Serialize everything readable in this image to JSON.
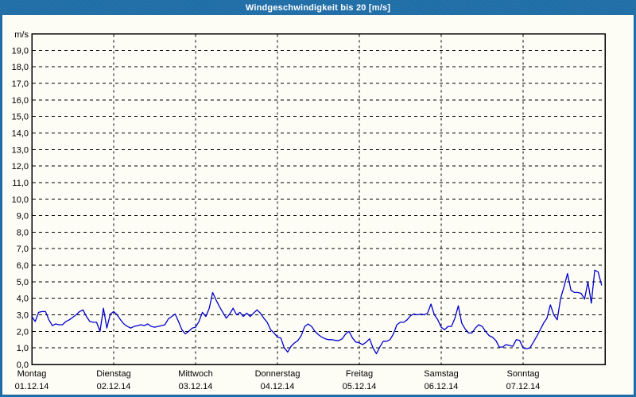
{
  "window": {
    "title": "Windgeschwindigkeit bis 20 [m/s]"
  },
  "chart_data": {
    "type": "line",
    "title": "Windgeschwindigkeit bis 20 [m/s]",
    "unit_label": "m/s",
    "ylim": [
      0,
      20
    ],
    "grid": true,
    "y_tick_labels": [
      "0,0",
      "1,0",
      "2,0",
      "3,0",
      "4,0",
      "5,0",
      "6,0",
      "7,0",
      "8,0",
      "9,0",
      "10,0",
      "11,0",
      "12,0",
      "13,0",
      "14,0",
      "15,0",
      "16,0",
      "17,0",
      "18,0",
      "19,0"
    ],
    "x_axis": {
      "days": [
        {
          "weekday": "Montag",
          "date": "01.12.14"
        },
        {
          "weekday": "Dienstag",
          "date": "02.12.14"
        },
        {
          "weekday": "Mittwoch",
          "date": "03.12.14"
        },
        {
          "weekday": "Donnerstag",
          "date": "04.12.14"
        },
        {
          "weekday": "Freitag",
          "date": "05.12.14"
        },
        {
          "weekday": "Samstag",
          "date": "06.12.14"
        },
        {
          "weekday": "Sonntag",
          "date": "07.12.14"
        }
      ],
      "points_per_day": 24
    },
    "series": [
      {
        "name": "Windgeschwindigkeit",
        "color": "#0000cc",
        "values": [
          2.9,
          2.6,
          3.15,
          3.2,
          3.2,
          2.7,
          2.35,
          2.45,
          2.4,
          2.4,
          2.6,
          2.7,
          2.85,
          3.0,
          3.2,
          3.3,
          2.9,
          2.6,
          2.55,
          2.55,
          2.0,
          3.4,
          2.2,
          3.05,
          3.2,
          3.0,
          2.7,
          2.45,
          2.3,
          2.2,
          2.3,
          2.35,
          2.4,
          2.35,
          2.45,
          2.3,
          2.25,
          2.3,
          2.35,
          2.4,
          2.75,
          2.9,
          3.05,
          2.6,
          2.1,
          1.85,
          2.0,
          2.2,
          2.25,
          2.6,
          3.15,
          2.9,
          3.4,
          4.35,
          3.9,
          3.5,
          3.15,
          2.8,
          3.05,
          3.4,
          3.0,
          3.15,
          2.9,
          3.1,
          2.9,
          3.1,
          3.3,
          3.1,
          2.8,
          2.55,
          2.1,
          1.9,
          1.65,
          1.6,
          1.0,
          0.75,
          1.1,
          1.3,
          1.45,
          1.75,
          2.3,
          2.45,
          2.3,
          2.0,
          1.8,
          1.65,
          1.55,
          1.5,
          1.5,
          1.45,
          1.45,
          1.55,
          1.85,
          2.0,
          1.6,
          1.35,
          1.3,
          1.2,
          1.35,
          1.55,
          1.0,
          0.65,
          1.05,
          1.4,
          1.4,
          1.5,
          1.85,
          2.4,
          2.55,
          2.55,
          2.7,
          2.95,
          3.05,
          3.0,
          3.05,
          3.0,
          3.1,
          3.65,
          3.0,
          2.7,
          2.25,
          2.1,
          2.3,
          2.3,
          2.8,
          3.55,
          2.5,
          2.15,
          1.9,
          1.9,
          2.2,
          2.4,
          2.3,
          2.0,
          1.75,
          1.65,
          1.45,
          1.05,
          1.05,
          1.2,
          1.15,
          1.1,
          1.5,
          1.45,
          1.0,
          0.95,
          1.0,
          1.35,
          1.7,
          2.1,
          2.5,
          2.8,
          3.6,
          3.0,
          2.7,
          4.0,
          4.7,
          5.5,
          4.5,
          4.35,
          4.35,
          4.3,
          3.95,
          5.0,
          3.7,
          5.7,
          5.6,
          4.8
        ]
      }
    ]
  },
  "colors": {
    "frame_blue": "#1e6da6",
    "plot_background": "#fdfdf6",
    "grid_black": "#000000",
    "line_blue": "#0000cc",
    "title_text": "#ffffff"
  }
}
